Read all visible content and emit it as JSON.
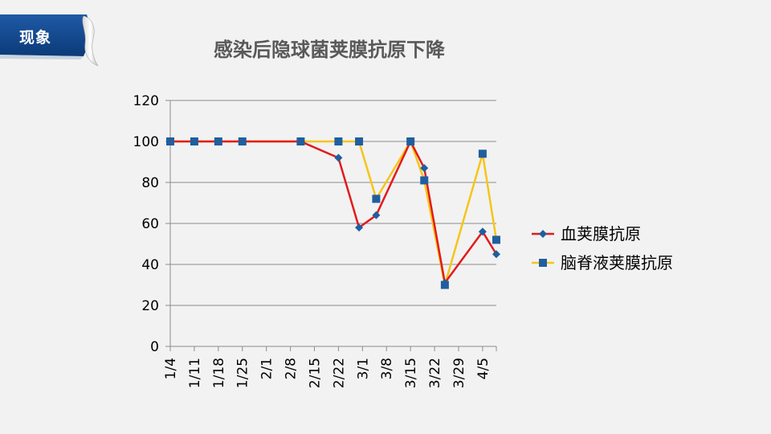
{
  "section_tab": {
    "label": "现象"
  },
  "chart_data": {
    "type": "line",
    "title": "感染后隐球菌荚膜抗原下降",
    "xlabel": "",
    "ylabel": "",
    "categories": [
      "1/4",
      "1/11",
      "1/18",
      "1/25",
      "2/1",
      "2/8",
      "2/15",
      "2/22",
      "3/1",
      "3/8",
      "3/15",
      "3/22",
      "3/29",
      "4/5"
    ],
    "x_start": "2000-01-04",
    "x_end": "2000-04-08",
    "ylim": [
      0,
      120
    ],
    "yticks": [
      0,
      20,
      40,
      60,
      80,
      100,
      120
    ],
    "grid": true,
    "legend_position": "right",
    "series": [
      {
        "name": "血荚膜抗原",
        "color": "#e31a1c",
        "marker": "diamond",
        "marker_color": "#1f5f9f",
        "points": [
          [
            "2000-01-04",
            100
          ],
          [
            "2000-01-11",
            100
          ],
          [
            "2000-01-18",
            100
          ],
          [
            "2000-01-25",
            100
          ],
          [
            "2000-02-11",
            100
          ],
          [
            "2000-02-22",
            92
          ],
          [
            "2000-02-28",
            58
          ],
          [
            "2000-03-04",
            64
          ],
          [
            "2000-03-14",
            100
          ],
          [
            "2000-03-18",
            87
          ],
          [
            "2000-03-24",
            31
          ],
          [
            "2000-04-04",
            56
          ],
          [
            "2000-04-08",
            45
          ]
        ]
      },
      {
        "name": "脑脊液荚膜抗原",
        "color": "#f5c518",
        "marker": "square",
        "marker_color": "#1f5f9f",
        "points": [
          [
            "2000-01-04",
            100
          ],
          [
            "2000-01-11",
            100
          ],
          [
            "2000-01-18",
            100
          ],
          [
            "2000-01-25",
            100
          ],
          [
            "2000-02-11",
            100
          ],
          [
            "2000-02-22",
            100
          ],
          [
            "2000-02-28",
            100
          ],
          [
            "2000-03-04",
            72
          ],
          [
            "2000-03-14",
            100
          ],
          [
            "2000-03-18",
            81
          ],
          [
            "2000-03-24",
            30
          ],
          [
            "2000-04-04",
            94
          ],
          [
            "2000-04-08",
            52
          ]
        ]
      }
    ]
  }
}
